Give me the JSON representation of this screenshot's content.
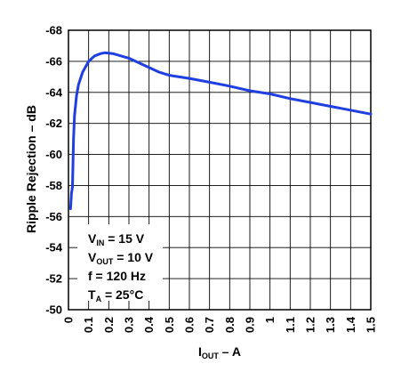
{
  "chart_data": {
    "type": "line",
    "xlabel": {
      "main": "I",
      "sub": "OUT",
      "suffix": " – A"
    },
    "ylabel": "Ripple Rejection – dB",
    "xlim": [
      0,
      1.5
    ],
    "ylim": [
      -50,
      -68
    ],
    "grid": true,
    "xticks": [
      "0",
      "0.1",
      "0.2",
      "0.3",
      "0.4",
      "0.5",
      "0.6",
      "0.7",
      "0.8",
      "0.9",
      "1",
      "1.1",
      "1.2",
      "1.3",
      "1.4",
      "1.5"
    ],
    "yticks": [
      "-68",
      "-66",
      "-64",
      "-62",
      "-60",
      "-58",
      "-56",
      "-54",
      "-52",
      "-50"
    ],
    "series": [
      {
        "color": "#1f3fe0",
        "points": [
          [
            0.01,
            -56.5
          ],
          [
            0.015,
            -57.5
          ],
          [
            0.02,
            -57.9
          ],
          [
            0.025,
            -61.0
          ],
          [
            0.03,
            -62.5
          ],
          [
            0.04,
            -63.8
          ],
          [
            0.05,
            -64.5
          ],
          [
            0.07,
            -65.3
          ],
          [
            0.1,
            -66.0
          ],
          [
            0.13,
            -66.35
          ],
          [
            0.16,
            -66.5
          ],
          [
            0.18,
            -66.55
          ],
          [
            0.22,
            -66.5
          ],
          [
            0.3,
            -66.2
          ],
          [
            0.35,
            -65.9
          ],
          [
            0.4,
            -65.6
          ],
          [
            0.45,
            -65.3
          ],
          [
            0.5,
            -65.1
          ],
          [
            0.6,
            -64.9
          ],
          [
            0.7,
            -64.65
          ],
          [
            0.8,
            -64.4
          ],
          [
            0.9,
            -64.1
          ],
          [
            1.0,
            -63.9
          ],
          [
            1.1,
            -63.6
          ],
          [
            1.2,
            -63.35
          ],
          [
            1.3,
            -63.1
          ],
          [
            1.4,
            -62.85
          ],
          [
            1.5,
            -62.6
          ]
        ]
      }
    ]
  },
  "conditions": [
    {
      "main": "V",
      "sub": "IN",
      "rest": " = 15 V"
    },
    {
      "main": "V",
      "sub": "OUT",
      "rest": " = 10 V"
    },
    {
      "main": "f = 120 Hz",
      "sub": "",
      "rest": ""
    },
    {
      "main": "T",
      "sub": "A",
      "rest": " = 25°C"
    }
  ]
}
